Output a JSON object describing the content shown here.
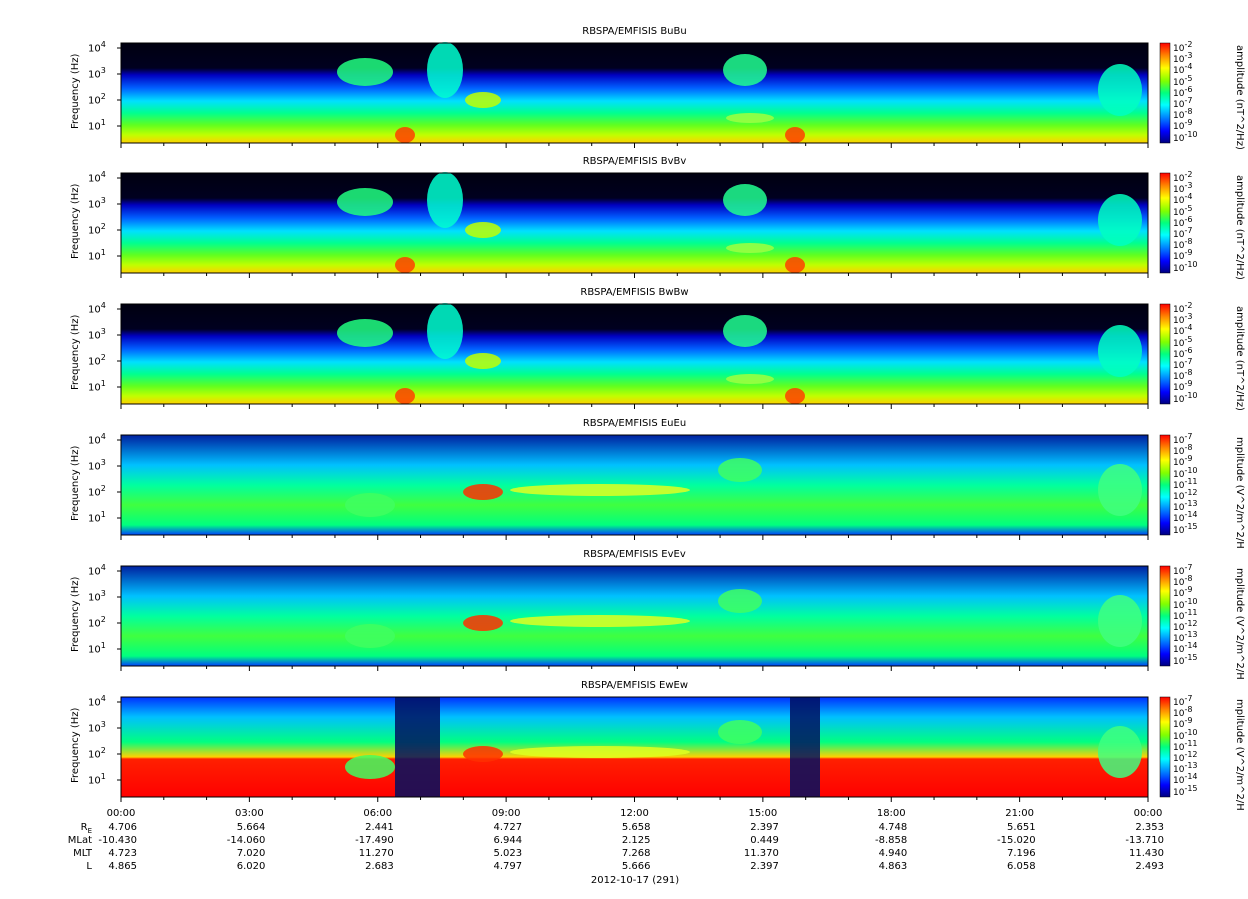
{
  "chart_data": [
    {
      "type": "heatmap",
      "title": "RBSPA/EMFISIS  BuBu",
      "ylabel": "Frequency (Hz)",
      "cbar_label": "amplitude (nT^2/Hz)",
      "cbar_ticks": [
        "10-2",
        "10-3",
        "10-4",
        "10-5",
        "10-6",
        "10-7",
        "10-8",
        "10-9",
        "10-10"
      ],
      "yticks": [
        "104",
        "103",
        "102",
        "101"
      ]
    },
    {
      "type": "heatmap",
      "title": "RBSPA/EMFISIS  BvBv",
      "ylabel": "Frequency (Hz)",
      "cbar_label": "amplitude (nT^2/Hz)",
      "cbar_ticks": [
        "10-2",
        "10-3",
        "10-4",
        "10-5",
        "10-6",
        "10-7",
        "10-8",
        "10-9",
        "10-10"
      ],
      "yticks": [
        "104",
        "103",
        "102",
        "101"
      ]
    },
    {
      "type": "heatmap",
      "title": "RBSPA/EMFISIS  BwBw",
      "ylabel": "Frequency (Hz)",
      "cbar_label": "amplitude (nT^2/Hz)",
      "cbar_ticks": [
        "10-2",
        "10-3",
        "10-4",
        "10-5",
        "10-6",
        "10-7",
        "10-8",
        "10-9",
        "10-10"
      ],
      "yticks": [
        "104",
        "103",
        "102",
        "101"
      ]
    },
    {
      "type": "heatmap",
      "title": "RBSPA/EMFISIS  EuEu",
      "ylabel": "Frequency (Hz)",
      "cbar_label": "mplitude (V^2/m^2/H",
      "cbar_ticks": [
        "10-7",
        "10-8",
        "10-9",
        "10-10",
        "10-11",
        "10-12",
        "10-13",
        "10-14",
        "10-15"
      ],
      "yticks": [
        "104",
        "103",
        "102",
        "101"
      ]
    },
    {
      "type": "heatmap",
      "title": "RBSPA/EMFISIS  EvEv",
      "ylabel": "Frequency (Hz)",
      "cbar_label": "mplitude (V^2/m^2/H",
      "cbar_ticks": [
        "10-7",
        "10-8",
        "10-9",
        "10-10",
        "10-11",
        "10-12",
        "10-13",
        "10-14",
        "10-15"
      ],
      "yticks": [
        "104",
        "103",
        "102",
        "101"
      ]
    },
    {
      "type": "heatmap",
      "title": "RBSPA/EMFISIS  EwEw",
      "ylabel": "Frequency (Hz)",
      "cbar_label": "mplitude (V^2/m^2/H",
      "cbar_ticks": [
        "10-7",
        "10-8",
        "10-9",
        "10-10",
        "10-11",
        "10-12",
        "10-13",
        "10-14",
        "10-15"
      ],
      "yticks": [
        "104",
        "103",
        "102",
        "101"
      ]
    }
  ],
  "xaxis": {
    "ticks": [
      "00:00",
      "03:00",
      "06:00",
      "09:00",
      "12:00",
      "15:00",
      "18:00",
      "21:00",
      "00:00"
    ],
    "date_label": "2012-10-17 (291)"
  },
  "ephemeris": {
    "labels": [
      "RE",
      "MLat",
      "MLT",
      "L"
    ],
    "rows": [
      [
        "4.706",
        "5.664",
        "2.441",
        "4.727",
        "5.658",
        "2.397",
        "4.748",
        "5.651",
        "2.353"
      ],
      [
        "-10.430",
        "-14.060",
        "-17.490",
        "6.944",
        "2.125",
        "0.449",
        "-8.858",
        "-15.020",
        "-13.710"
      ],
      [
        "4.723",
        "7.020",
        "11.270",
        "5.023",
        "7.268",
        "11.370",
        "4.940",
        "7.196",
        "11.430"
      ],
      [
        "4.865",
        "6.020",
        "2.683",
        "4.797",
        "5.666",
        "2.397",
        "4.863",
        "6.058",
        "2.493"
      ]
    ]
  },
  "colors": {
    "colorbar": [
      "#000080",
      "#0000ff",
      "#0080ff",
      "#00ffff",
      "#00ff80",
      "#80ff00",
      "#ffff00",
      "#ff8000",
      "#ff0000"
    ],
    "background": "#000000"
  }
}
